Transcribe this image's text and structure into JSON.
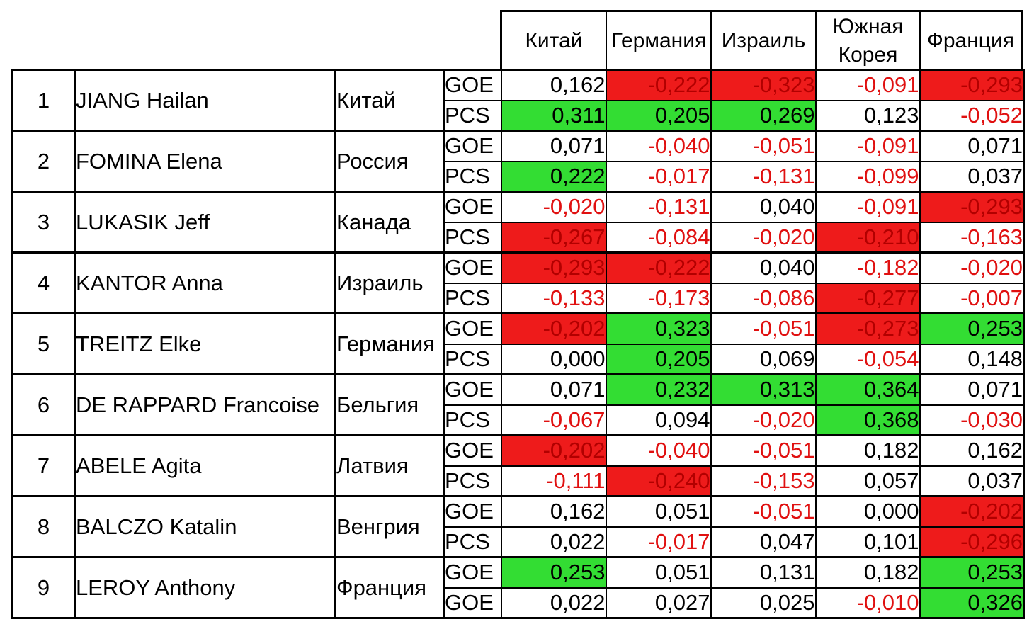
{
  "header": {
    "columns": [
      "Китай",
      "Германия",
      "Израиль",
      "Южная Корея",
      "Франция"
    ]
  },
  "rows": [
    {
      "num": "1",
      "name": "JIANG Hailan",
      "country": "Китай",
      "lines": [
        {
          "kind": "GOE",
          "values": [
            "0,162",
            "-0,222",
            "-0,323",
            "-0,091",
            "-0,293"
          ],
          "fills": [
            "none",
            "red",
            "red",
            "none",
            "red"
          ]
        },
        {
          "kind": "PCS",
          "values": [
            "0,311",
            "0,205",
            "0,269",
            "0,123",
            "-0,052"
          ],
          "fills": [
            "green",
            "green",
            "green",
            "none",
            "none"
          ]
        }
      ]
    },
    {
      "num": "2",
      "name": "FOMINA Elena",
      "country": "Россия",
      "lines": [
        {
          "kind": "GOE",
          "values": [
            "0,071",
            "-0,040",
            "-0,051",
            "-0,091",
            "0,071"
          ],
          "fills": [
            "none",
            "none",
            "none",
            "none",
            "none"
          ]
        },
        {
          "kind": "PCS",
          "values": [
            "0,222",
            "-0,017",
            "-0,131",
            "-0,099",
            "0,037"
          ],
          "fills": [
            "green",
            "none",
            "none",
            "none",
            "none"
          ]
        }
      ]
    },
    {
      "num": "3",
      "name": "LUKASIK Jeff",
      "country": "Канада",
      "lines": [
        {
          "kind": "GOE",
          "values": [
            "-0,020",
            "-0,131",
            "0,040",
            "-0,091",
            "-0,293"
          ],
          "fills": [
            "none",
            "none",
            "none",
            "none",
            "red"
          ]
        },
        {
          "kind": "PCS",
          "values": [
            "-0,267",
            "-0,084",
            "-0,020",
            "-0,210",
            "-0,163"
          ],
          "fills": [
            "red",
            "none",
            "none",
            "red",
            "none"
          ]
        }
      ]
    },
    {
      "num": "4",
      "name": "KANTOR Anna",
      "country": "Израиль",
      "lines": [
        {
          "kind": "GOE",
          "values": [
            "-0,293",
            "-0,222",
            "0,040",
            "-0,182",
            "-0,020"
          ],
          "fills": [
            "red",
            "red",
            "none",
            "none",
            "none"
          ]
        },
        {
          "kind": "PCS",
          "values": [
            "-0,133",
            "-0,173",
            "-0,086",
            "-0,277",
            "-0,007"
          ],
          "fills": [
            "none",
            "none",
            "none",
            "red",
            "none"
          ]
        }
      ]
    },
    {
      "num": "5",
      "name": "TREITZ Elke",
      "country": "Германия",
      "lines": [
        {
          "kind": "GOE",
          "values": [
            "-0,202",
            "0,323",
            "-0,051",
            "-0,273",
            "0,253"
          ],
          "fills": [
            "red",
            "green",
            "none",
            "red",
            "green"
          ]
        },
        {
          "kind": "PCS",
          "values": [
            "0,000",
            "0,205",
            "0,069",
            "-0,054",
            "0,148"
          ],
          "fills": [
            "none",
            "green",
            "none",
            "none",
            "none"
          ]
        }
      ]
    },
    {
      "num": "6",
      "name": "DE RAPPARD Francoise",
      "country": "Бельгия",
      "lines": [
        {
          "kind": "GOE",
          "values": [
            "0,071",
            "0,232",
            "0,313",
            "0,364",
            "0,071"
          ],
          "fills": [
            "none",
            "green",
            "green",
            "green",
            "none"
          ]
        },
        {
          "kind": "PCS",
          "values": [
            "-0,067",
            "0,094",
            "-0,020",
            "0,368",
            "-0,030"
          ],
          "fills": [
            "none",
            "none",
            "none",
            "green",
            "none"
          ]
        }
      ]
    },
    {
      "num": "7",
      "name": "ABELE Agita",
      "country": "Латвия",
      "lines": [
        {
          "kind": "GOE",
          "values": [
            "-0,202",
            "-0,040",
            "-0,051",
            "0,182",
            "0,162"
          ],
          "fills": [
            "red",
            "none",
            "none",
            "none",
            "none"
          ]
        },
        {
          "kind": "PCS",
          "values": [
            "-0,111",
            "-0,240",
            "-0,153",
            "0,057",
            "0,037"
          ],
          "fills": [
            "none",
            "red",
            "none",
            "none",
            "none"
          ]
        }
      ]
    },
    {
      "num": "8",
      "name": "BALCZO Katalin",
      "country": "Венгрия",
      "lines": [
        {
          "kind": "GOE",
          "values": [
            "0,162",
            "0,051",
            "-0,051",
            "0,000",
            "-0,202"
          ],
          "fills": [
            "none",
            "none",
            "none",
            "none",
            "red"
          ]
        },
        {
          "kind": "PCS",
          "values": [
            "0,022",
            "-0,017",
            "0,047",
            "0,101",
            "-0,296"
          ],
          "fills": [
            "none",
            "none",
            "none",
            "none",
            "red"
          ]
        }
      ]
    },
    {
      "num": "9",
      "name": "LEROY Anthony",
      "country": "Франция",
      "lines": [
        {
          "kind": "GOE",
          "values": [
            "0,253",
            "0,051",
            "0,131",
            "0,182",
            "0,253"
          ],
          "fills": [
            "green",
            "none",
            "none",
            "none",
            "green"
          ]
        },
        {
          "kind": "GOE",
          "values": [
            "0,022",
            "0,027",
            "0,025",
            "-0,010",
            "0,326"
          ],
          "fills": [
            "none",
            "none",
            "none",
            "none",
            "green"
          ]
        }
      ]
    }
  ],
  "colors": {
    "red_fill": "#ee1b1b",
    "green_fill": "#33dd33",
    "negative_text": "#e01010"
  }
}
